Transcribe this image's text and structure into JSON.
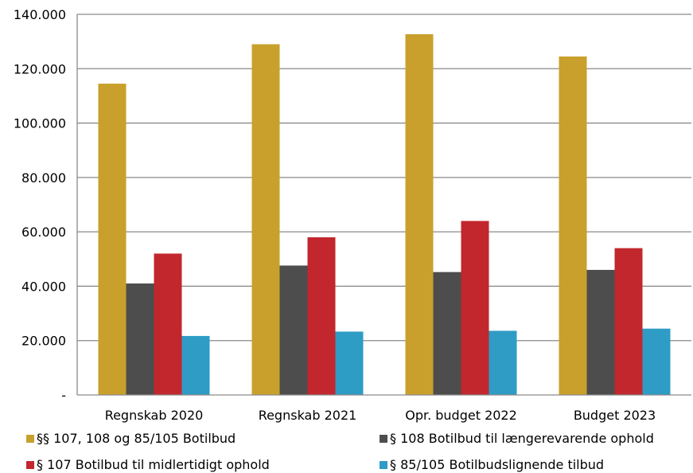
{
  "chart_data": {
    "type": "bar",
    "title": "",
    "xlabel": "",
    "ylabel": "",
    "categories": [
      "Regnskab 2020",
      "Regnskab 2021",
      "Opr. budget 2022",
      "Budget 2023"
    ],
    "ylim": [
      0,
      140000
    ],
    "yticks": [
      0,
      20000,
      40000,
      60000,
      80000,
      100000,
      120000,
      140000
    ],
    "ytick_labels": [
      "-",
      "20.000",
      "40.000",
      "60.000",
      "80.000",
      "100.000",
      "120.000",
      "140.000"
    ],
    "grid": "horizontal",
    "legend_position": "bottom",
    "series": [
      {
        "name": "§§ 107, 108 og 85/105 Botilbud",
        "color": "#C9A02B",
        "values": [
          114500,
          129000,
          132700,
          124500
        ]
      },
      {
        "name": "§ 108 Botilbud til længerevarende ophold",
        "color": "#4D4D4D",
        "values": [
          41000,
          47600,
          45200,
          46000
        ]
      },
      {
        "name": "§ 107 Botilbud til midlertidigt ophold",
        "color": "#C1272D",
        "values": [
          52000,
          58000,
          64000,
          54000
        ]
      },
      {
        "name": "§ 85/105 Botilbudslignende tilbud",
        "color": "#2E9CC5",
        "values": [
          21700,
          23300,
          23600,
          24400
        ]
      }
    ]
  }
}
